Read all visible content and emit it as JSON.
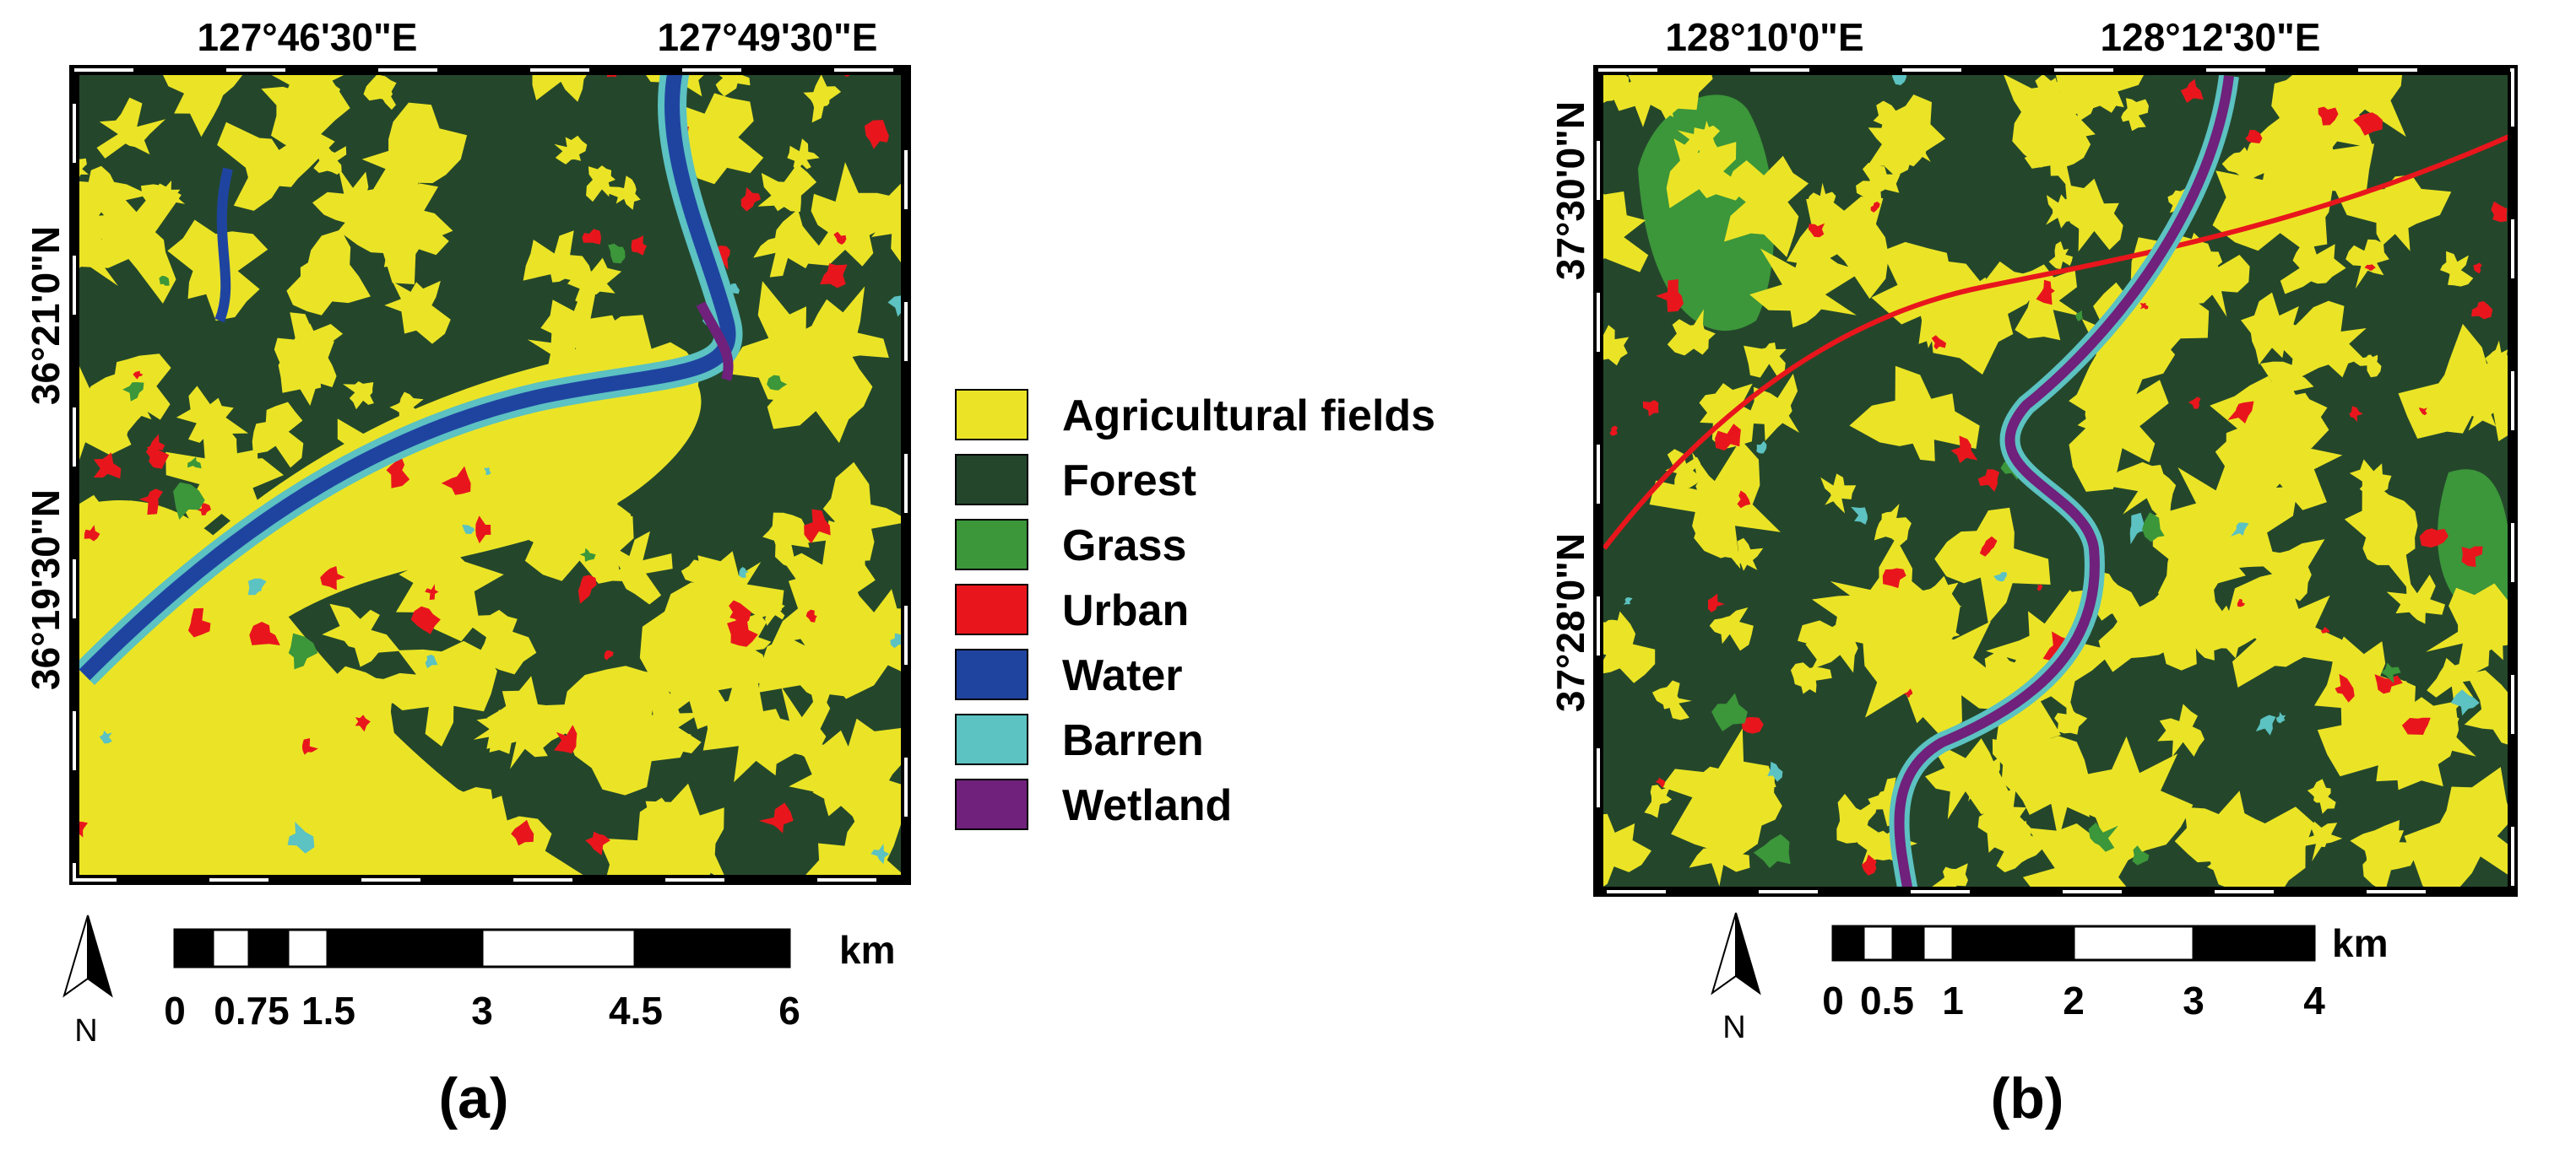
{
  "panels": [
    {
      "label": "(a)",
      "lon_labels": [
        "127°46'30\"E",
        "127°49'30\"E"
      ],
      "lat_labels": [
        "36°21'0\"N",
        "36°19'30\"N"
      ],
      "scale_labels": [
        "0",
        "0.75",
        "1.5",
        "3",
        "4.5",
        "6"
      ],
      "scale_unit": "km",
      "north": "N"
    },
    {
      "label": "(b)",
      "lon_labels": [
        "128°10'0\"E",
        "128°12'30\"E"
      ],
      "lat_labels": [
        "37°30'0\"N",
        "37°28'0\"N"
      ],
      "scale_labels": [
        "0",
        "0.5",
        "1",
        "2",
        "3",
        "4"
      ],
      "scale_unit": "km",
      "north": "N"
    }
  ],
  "legend": [
    {
      "name": "Agricultural fields",
      "color": "#ebe426"
    },
    {
      "name": "Forest",
      "color": "#24472b"
    },
    {
      "name": "Grass",
      "color": "#3c963a"
    },
    {
      "name": "Urban",
      "color": "#e8161c"
    },
    {
      "name": "Water",
      "color": "#1f44a0"
    },
    {
      "name": "Barren",
      "color": "#5cc2c2"
    },
    {
      "name": "Wetland",
      "color": "#6f217b"
    }
  ]
}
